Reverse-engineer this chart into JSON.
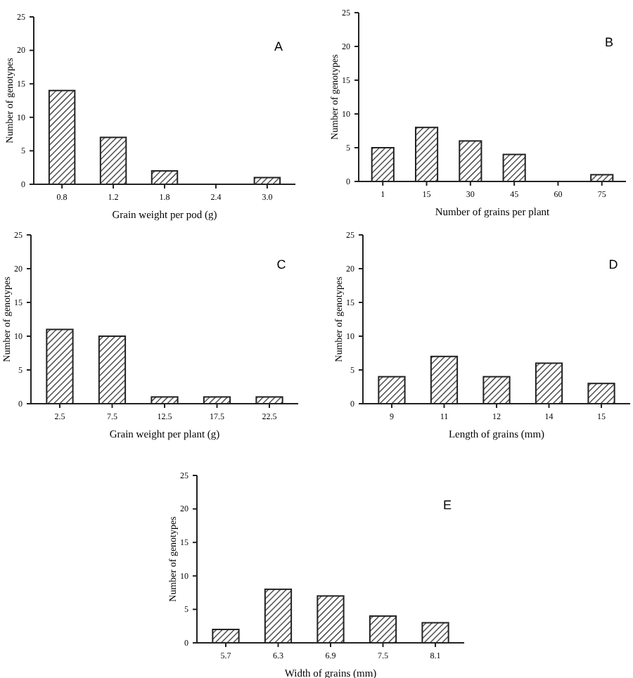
{
  "chart_data": [
    {
      "type": "bar",
      "categories": [
        "0.8",
        "1.2",
        "1.8",
        "2.4",
        "3.0"
      ],
      "values": [
        14,
        7,
        2,
        0,
        1
      ],
      "color": "#222222",
      "xlabel": "Grain weight per pod (g)",
      "ylabel": "Number of genotypes",
      "ylim": [
        0,
        25
      ],
      "yticks": [
        0,
        5,
        10,
        15,
        20,
        25
      ],
      "annotations": [
        "A"
      ]
    },
    {
      "type": "bar",
      "categories": [
        "1",
        "15",
        "30",
        "45",
        "60",
        "75"
      ],
      "values": [
        5,
        8,
        6,
        4,
        0,
        1
      ],
      "color": "#222222",
      "xlabel": "Number of grains per plant",
      "ylabel": "Number of genotypes",
      "ylim": [
        0,
        25
      ],
      "yticks": [
        0,
        5,
        10,
        15,
        20,
        25
      ],
      "annotations": [
        "B"
      ]
    },
    {
      "type": "bar",
      "categories": [
        "2.5",
        "7.5",
        "12.5",
        "17.5",
        "22.5"
      ],
      "values": [
        11,
        10,
        1,
        1,
        1
      ],
      "color": "#222222",
      "xlabel": "Grain weight per plant (g)",
      "ylabel": "Number of genotypes",
      "ylim": [
        0,
        25
      ],
      "yticks": [
        0,
        5,
        10,
        15,
        20,
        25
      ],
      "annotations": [
        "C"
      ]
    },
    {
      "type": "bar",
      "categories": [
        "9",
        "11",
        "12",
        "14",
        "15"
      ],
      "values": [
        4,
        7,
        4,
        6,
        3
      ],
      "color": "#222222",
      "xlabel": "Length of grains (mm)",
      "ylabel": "Number of genotypes",
      "ylim": [
        0,
        25
      ],
      "yticks": [
        0,
        5,
        10,
        15,
        20,
        25
      ],
      "annotations": [
        "D"
      ]
    },
    {
      "type": "bar",
      "categories": [
        "5.7",
        "6.3",
        "6.9",
        "7.5",
        "8.1"
      ],
      "values": [
        2,
        8,
        7,
        4,
        3
      ],
      "color": "#222222",
      "xlabel": "Width of grains (mm)",
      "ylabel": "Number of genotypes",
      "ylim": [
        0,
        25
      ],
      "yticks": [
        0,
        5,
        10,
        15,
        20,
        25
      ],
      "annotations": [
        "E"
      ]
    }
  ]
}
